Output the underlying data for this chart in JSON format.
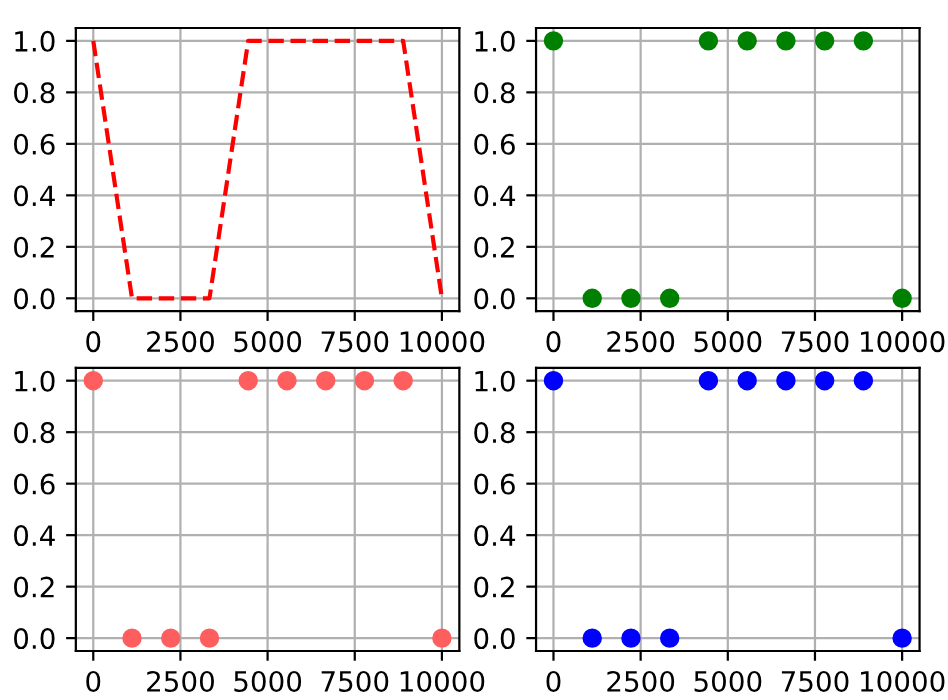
{
  "chart_data": [
    {
      "type": "line",
      "x": [
        0,
        1111,
        2222,
        3333,
        4444,
        5556,
        6667,
        7778,
        8889,
        10000
      ],
      "series": [
        {
          "color": "#ff0000",
          "values": [
            1,
            0,
            0,
            0,
            1,
            1,
            1,
            1,
            1,
            0
          ]
        }
      ],
      "line_style": "dashed",
      "xlim": [
        -500,
        10500
      ],
      "ylim": [
        -0.05,
        1.05
      ],
      "xticks": [
        {
          "value": 0,
          "label": "0"
        },
        {
          "value": 2500,
          "label": "2500"
        },
        {
          "value": 5000,
          "label": "5000"
        },
        {
          "value": 7500,
          "label": "7500"
        },
        {
          "value": 10000,
          "label": "10000"
        }
      ],
      "yticks": [
        {
          "value": 0,
          "label": "0.0"
        },
        {
          "value": 0.2,
          "label": "0.2"
        },
        {
          "value": 0.4,
          "label": "0.4"
        },
        {
          "value": 0.6,
          "label": "0.6"
        },
        {
          "value": 0.8,
          "label": "0.8"
        },
        {
          "value": 1,
          "label": "1.0"
        }
      ],
      "grid": true
    },
    {
      "type": "scatter",
      "x": [
        0,
        1111,
        2222,
        3333,
        4444,
        5556,
        6667,
        7778,
        8889,
        10000
      ],
      "series": [
        {
          "color": "#008000",
          "values": [
            1,
            0,
            0,
            0,
            1,
            1,
            1,
            1,
            1,
            0
          ]
        }
      ],
      "marker": "circle",
      "xlim": [
        -500,
        10500
      ],
      "ylim": [
        -0.05,
        1.05
      ],
      "xticks": [
        {
          "value": 0,
          "label": "0"
        },
        {
          "value": 2500,
          "label": "2500"
        },
        {
          "value": 5000,
          "label": "5000"
        },
        {
          "value": 7500,
          "label": "7500"
        },
        {
          "value": 10000,
          "label": "10000"
        }
      ],
      "yticks": [
        {
          "value": 0,
          "label": "0.0"
        },
        {
          "value": 0.2,
          "label": "0.2"
        },
        {
          "value": 0.4,
          "label": "0.4"
        },
        {
          "value": 0.6,
          "label": "0.6"
        },
        {
          "value": 0.8,
          "label": "0.8"
        },
        {
          "value": 1,
          "label": "1.0"
        }
      ],
      "grid": true
    },
    {
      "type": "scatter",
      "x": [
        0,
        1111,
        2222,
        3333,
        4444,
        5556,
        6667,
        7778,
        8889,
        10000
      ],
      "series": [
        {
          "color": "#ff5e5e",
          "values": [
            1,
            0,
            0,
            0,
            1,
            1,
            1,
            1,
            1,
            0
          ]
        }
      ],
      "marker": "circle",
      "xlim": [
        -500,
        10500
      ],
      "ylim": [
        -0.05,
        1.05
      ],
      "xticks": [
        {
          "value": 0,
          "label": "0"
        },
        {
          "value": 2500,
          "label": "2500"
        },
        {
          "value": 5000,
          "label": "5000"
        },
        {
          "value": 7500,
          "label": "7500"
        },
        {
          "value": 10000,
          "label": "10000"
        }
      ],
      "yticks": [
        {
          "value": 0,
          "label": "0.0"
        },
        {
          "value": 0.2,
          "label": "0.2"
        },
        {
          "value": 0.4,
          "label": "0.4"
        },
        {
          "value": 0.6,
          "label": "0.6"
        },
        {
          "value": 0.8,
          "label": "0.8"
        },
        {
          "value": 1,
          "label": "1.0"
        }
      ],
      "grid": true
    },
    {
      "type": "scatter",
      "x": [
        0,
        1111,
        2222,
        3333,
        4444,
        5556,
        6667,
        7778,
        8889,
        10000
      ],
      "series": [
        {
          "color": "#0000ff",
          "values": [
            1,
            0,
            0,
            0,
            1,
            1,
            1,
            1,
            1,
            0
          ]
        }
      ],
      "marker": "circle",
      "xlim": [
        -500,
        10500
      ],
      "ylim": [
        -0.05,
        1.05
      ],
      "xticks": [
        {
          "value": 0,
          "label": "0"
        },
        {
          "value": 2500,
          "label": "2500"
        },
        {
          "value": 5000,
          "label": "5000"
        },
        {
          "value": 7500,
          "label": "7500"
        },
        {
          "value": 10000,
          "label": "10000"
        }
      ],
      "yticks": [
        {
          "value": 0,
          "label": "0.0"
        },
        {
          "value": 0.2,
          "label": "0.2"
        },
        {
          "value": 0.4,
          "label": "0.4"
        },
        {
          "value": 0.6,
          "label": "0.6"
        },
        {
          "value": 0.8,
          "label": "0.8"
        },
        {
          "value": 1,
          "label": "1.0"
        }
      ],
      "grid": true
    }
  ]
}
